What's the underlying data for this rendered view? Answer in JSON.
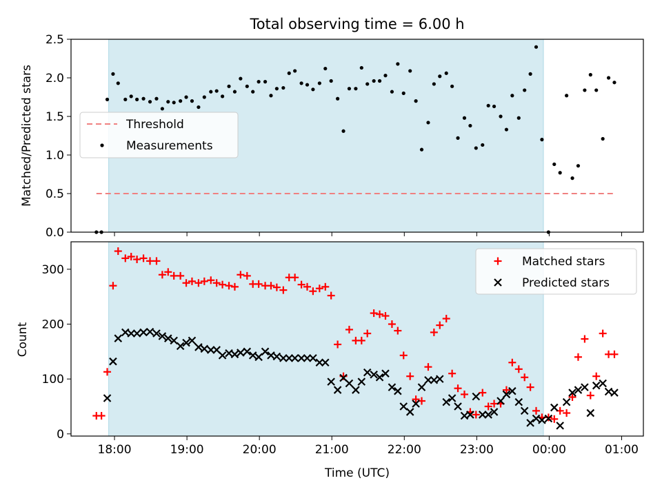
{
  "chart_data": [
    {
      "type": "scatter",
      "title": "Total observing time = 6.00 h",
      "ylabel": "Matched/Predicted stars",
      "ylim": [
        0.0,
        2.5
      ],
      "yticks": [
        0.0,
        0.5,
        1.0,
        1.5,
        2.0,
        2.5
      ],
      "yticklabels": [
        "0.0",
        "0.5",
        "1.0",
        "1.5",
        "2.0",
        "2.5"
      ],
      "legend": {
        "placement": "center-left",
        "entries": [
          "Threshold",
          "Measurements"
        ]
      },
      "observing_window_hours": [
        17.92,
        23.92
      ],
      "threshold": {
        "name": "Threshold",
        "value": 0.5,
        "x_range": [
          17.75,
          24.9
        ],
        "color": "#f08080",
        "style": "dashed"
      },
      "series": [
        {
          "name": "Measurements",
          "color": "#000000",
          "x": [
            17.75,
            17.82,
            17.9,
            17.98,
            18.05,
            18.15,
            18.23,
            18.31,
            18.4,
            18.49,
            18.58,
            18.66,
            18.74,
            18.82,
            18.91,
            18.99,
            19.07,
            19.16,
            19.24,
            19.33,
            19.41,
            19.49,
            19.58,
            19.66,
            19.74,
            19.83,
            19.91,
            19.99,
            20.08,
            20.16,
            20.24,
            20.33,
            20.41,
            20.49,
            20.58,
            20.66,
            20.74,
            20.83,
            20.91,
            20.99,
            21.08,
            21.16,
            21.24,
            21.33,
            21.41,
            21.49,
            21.58,
            21.66,
            21.74,
            21.83,
            21.91,
            21.99,
            22.08,
            22.16,
            22.24,
            22.33,
            22.41,
            22.49,
            22.58,
            22.66,
            22.74,
            22.83,
            22.91,
            22.99,
            23.08,
            23.16,
            23.24,
            23.33,
            23.41,
            23.49,
            23.58,
            23.66,
            23.74,
            23.82,
            23.9,
            23.99,
            24.07,
            24.15,
            24.24,
            24.32,
            24.4,
            24.49,
            24.57,
            24.65,
            24.74,
            24.82,
            24.9
          ],
          "y": [
            0.0,
            0.0,
            1.72,
            2.05,
            1.93,
            1.72,
            1.76,
            1.72,
            1.73,
            1.69,
            1.73,
            1.6,
            1.69,
            1.68,
            1.7,
            1.75,
            1.7,
            1.62,
            1.75,
            1.82,
            1.83,
            1.76,
            1.89,
            1.82,
            1.99,
            1.89,
            1.82,
            1.95,
            1.95,
            1.77,
            1.86,
            1.87,
            2.06,
            2.09,
            1.93,
            1.91,
            1.85,
            1.93,
            2.12,
            1.96,
            1.73,
            1.31,
            1.86,
            1.86,
            2.13,
            1.92,
            1.96,
            1.96,
            2.03,
            1.82,
            2.18,
            1.8,
            2.09,
            1.7,
            1.07,
            1.42,
            1.92,
            2.02,
            2.06,
            1.89,
            1.22,
            1.48,
            1.38,
            1.09,
            1.13,
            1.64,
            1.63,
            1.5,
            1.33,
            1.77,
            1.48,
            1.84,
            2.05,
            2.4,
            1.2,
            0.0,
            0.88,
            0.77,
            1.77,
            0.7,
            0.86,
            1.84,
            2.04,
            1.84,
            1.21,
            2.0,
            1.94
          ]
        }
      ]
    },
    {
      "type": "scatter",
      "xlabel": "Time (UTC)",
      "ylabel": "Count",
      "xlim": [
        17.4,
        25.3
      ],
      "ylim": [
        -4,
        350
      ],
      "xticks": [
        18,
        19,
        20,
        21,
        22,
        23,
        24,
        25
      ],
      "xticklabels": [
        "18:00",
        "19:00",
        "20:00",
        "21:00",
        "22:00",
        "23:00",
        "00:00",
        "01:00"
      ],
      "yticks": [
        0,
        100,
        200,
        300
      ],
      "yticklabels": [
        "0",
        "100",
        "200",
        "300"
      ],
      "legend": {
        "placement": "top-right",
        "entries": [
          "Matched stars",
          "Predicted stars"
        ]
      },
      "observing_window_hours": [
        17.92,
        23.92
      ],
      "series": [
        {
          "name": "Matched stars",
          "marker": "plus",
          "color": "#ff0000",
          "x": [
            17.75,
            17.82,
            17.9,
            17.98,
            18.05,
            18.15,
            18.23,
            18.31,
            18.4,
            18.49,
            18.58,
            18.66,
            18.74,
            18.82,
            18.91,
            18.99,
            19.07,
            19.16,
            19.24,
            19.33,
            19.41,
            19.49,
            19.58,
            19.66,
            19.74,
            19.83,
            19.91,
            19.99,
            20.08,
            20.16,
            20.24,
            20.33,
            20.41,
            20.49,
            20.58,
            20.66,
            20.74,
            20.83,
            20.91,
            20.99,
            21.08,
            21.16,
            21.24,
            21.33,
            21.41,
            21.49,
            21.58,
            21.66,
            21.74,
            21.83,
            21.91,
            21.99,
            22.08,
            22.16,
            22.24,
            22.33,
            22.41,
            22.49,
            22.58,
            22.66,
            22.74,
            22.83,
            22.91,
            22.99,
            23.08,
            23.16,
            23.24,
            23.33,
            23.41,
            23.49,
            23.58,
            23.66,
            23.74,
            23.82,
            23.9,
            23.99,
            24.07,
            24.15,
            24.24,
            24.32,
            24.4,
            24.49,
            24.57,
            24.65,
            24.74,
            24.82,
            24.9
          ],
          "y": [
            33,
            33,
            113,
            270,
            333,
            320,
            323,
            318,
            320,
            315,
            315,
            290,
            295,
            288,
            288,
            275,
            278,
            275,
            278,
            280,
            275,
            272,
            270,
            268,
            290,
            288,
            273,
            273,
            270,
            270,
            267,
            262,
            285,
            285,
            272,
            268,
            260,
            265,
            268,
            252,
            163,
            105,
            190,
            170,
            170,
            183,
            220,
            218,
            215,
            200,
            188,
            143,
            105,
            63,
            60,
            122,
            185,
            198,
            210,
            110,
            83,
            72,
            40,
            35,
            75,
            50,
            55,
            55,
            80,
            130,
            118,
            103,
            85,
            42,
            30,
            30,
            27,
            42,
            38,
            67,
            140,
            173,
            70,
            105,
            183,
            145,
            145
          ]
        },
        {
          "name": "Predicted stars",
          "marker": "x",
          "color": "#000000",
          "x": [
            17.9,
            17.98,
            18.05,
            18.15,
            18.23,
            18.31,
            18.4,
            18.49,
            18.58,
            18.66,
            18.74,
            18.82,
            18.91,
            18.99,
            19.07,
            19.16,
            19.24,
            19.33,
            19.41,
            19.49,
            19.58,
            19.66,
            19.74,
            19.83,
            19.91,
            19.99,
            20.08,
            20.16,
            20.24,
            20.33,
            20.41,
            20.49,
            20.58,
            20.66,
            20.74,
            20.83,
            20.91,
            20.99,
            21.08,
            21.16,
            21.24,
            21.33,
            21.41,
            21.49,
            21.58,
            21.66,
            21.74,
            21.83,
            21.91,
            21.99,
            22.08,
            22.16,
            22.24,
            22.33,
            22.41,
            22.49,
            22.58,
            22.66,
            22.74,
            22.83,
            22.91,
            22.99,
            23.08,
            23.16,
            23.24,
            23.33,
            23.41,
            23.49,
            23.58,
            23.66,
            23.74,
            23.82,
            23.9,
            23.99,
            24.07,
            24.15,
            24.24,
            24.32,
            24.4,
            24.49,
            24.57,
            24.65,
            24.74,
            24.82,
            24.9
          ],
          "y": [
            65,
            132,
            174,
            185,
            183,
            183,
            185,
            186,
            183,
            178,
            174,
            170,
            160,
            166,
            170,
            158,
            155,
            153,
            153,
            143,
            147,
            145,
            148,
            150,
            143,
            140,
            150,
            143,
            141,
            138,
            138,
            138,
            138,
            138,
            138,
            130,
            130,
            95,
            80,
            102,
            92,
            80,
            95,
            112,
            108,
            103,
            110,
            85,
            78,
            50,
            40,
            55,
            85,
            98,
            98,
            100,
            58,
            65,
            50,
            33,
            35,
            68,
            35,
            35,
            40,
            60,
            72,
            78,
            58,
            42,
            20,
            28,
            25,
            28,
            48,
            15,
            58,
            75,
            80,
            85,
            38,
            88,
            92,
            77,
            75
          ]
        }
      ]
    }
  ]
}
